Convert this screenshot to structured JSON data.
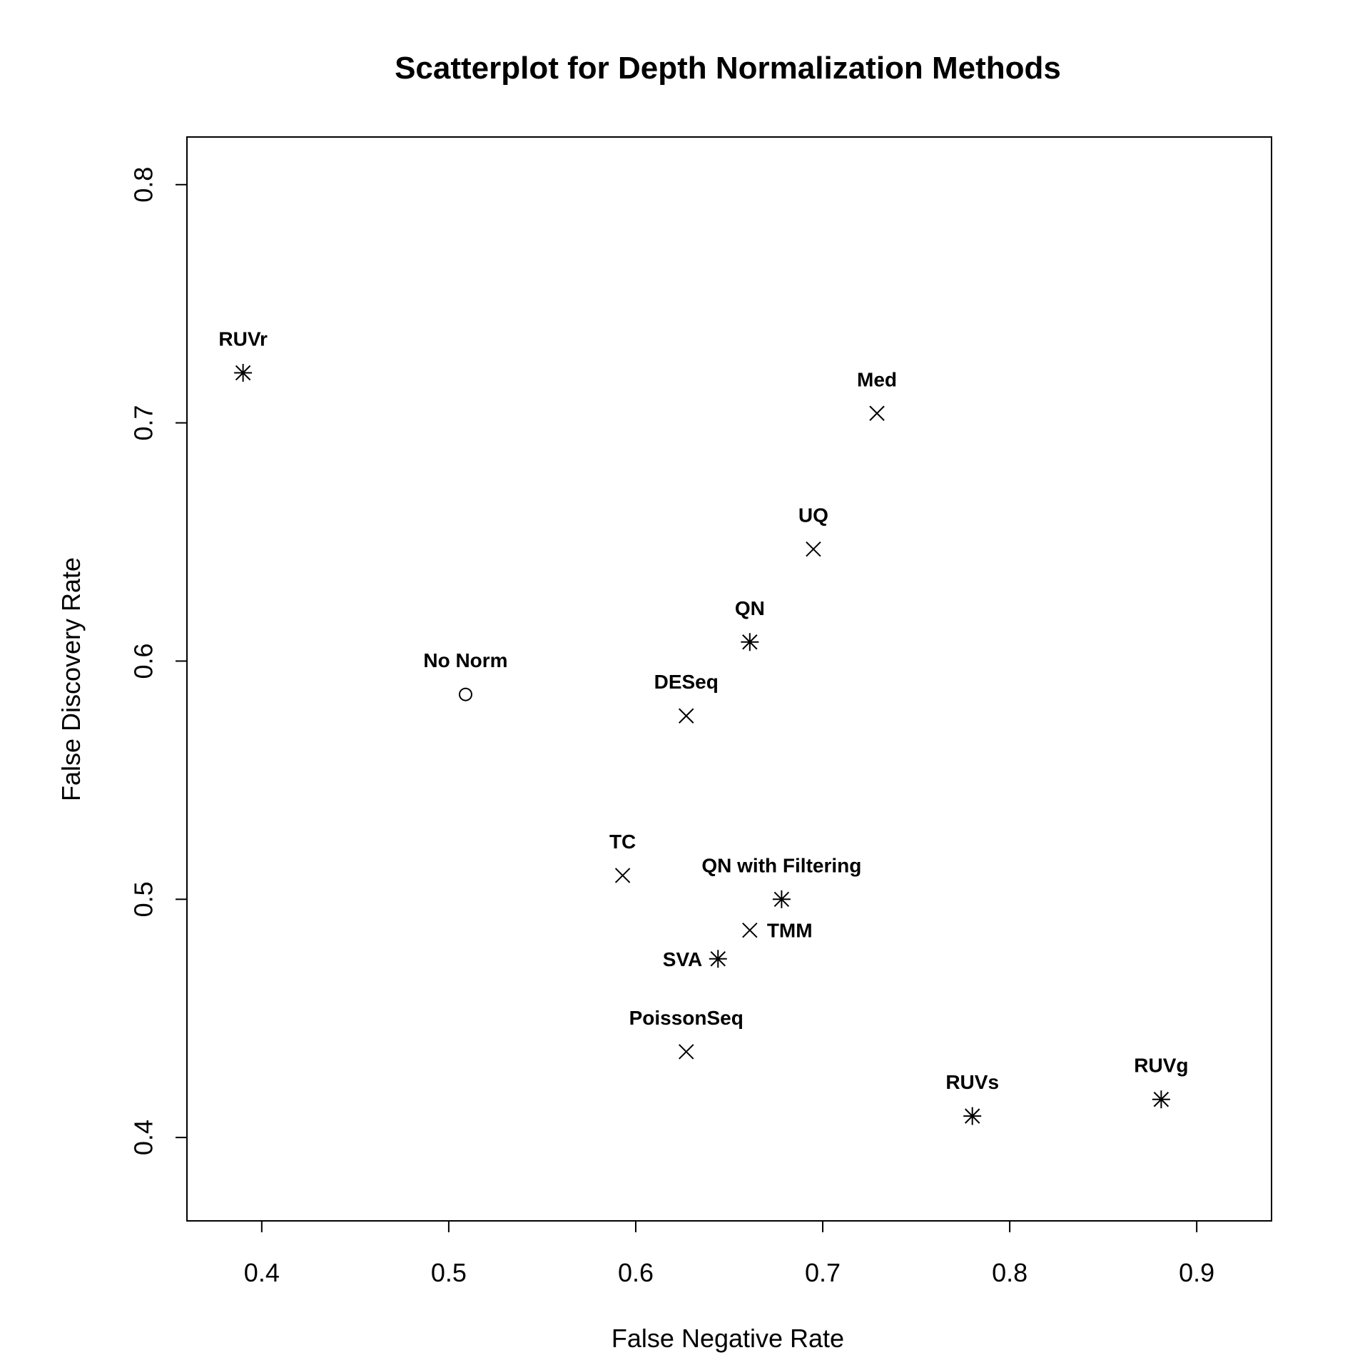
{
  "chart_data": {
    "type": "scatter",
    "title": "Scatterplot for Depth Normalization Methods",
    "xlabel": "False Negative Rate",
    "ylabel": "False Discovery Rate",
    "xlim": [
      0.36,
      0.94
    ],
    "ylim": [
      0.365,
      0.82
    ],
    "xticks": [
      0.4,
      0.5,
      0.6,
      0.7,
      0.8,
      0.9
    ],
    "xtick_labels": [
      "0.4",
      "0.5",
      "0.6",
      "0.7",
      "0.8",
      "0.9"
    ],
    "yticks": [
      0.4,
      0.5,
      0.6,
      0.7,
      0.8
    ],
    "ytick_labels": [
      "0.4",
      "0.5",
      "0.6",
      "0.7",
      "0.8"
    ],
    "grid": false,
    "legend": "none",
    "points": [
      {
        "label": "RUVr",
        "x": 0.39,
        "y": 0.721,
        "marker": "asterisk",
        "label_pos": "top"
      },
      {
        "label": "Med",
        "x": 0.729,
        "y": 0.704,
        "marker": "cross",
        "label_pos": "top"
      },
      {
        "label": "UQ",
        "x": 0.695,
        "y": 0.647,
        "marker": "cross",
        "label_pos": "top"
      },
      {
        "label": "QN",
        "x": 0.661,
        "y": 0.608,
        "marker": "asterisk",
        "label_pos": "top"
      },
      {
        "label": "No Norm",
        "x": 0.509,
        "y": 0.586,
        "marker": "circle",
        "label_pos": "top"
      },
      {
        "label": "DESeq",
        "x": 0.627,
        "y": 0.577,
        "marker": "cross",
        "label_pos": "top"
      },
      {
        "label": "TC",
        "x": 0.593,
        "y": 0.51,
        "marker": "cross",
        "label_pos": "top"
      },
      {
        "label": "QN with Filtering",
        "x": 0.678,
        "y": 0.5,
        "marker": "asterisk",
        "label_pos": "top"
      },
      {
        "label": "TMM",
        "x": 0.661,
        "y": 0.487,
        "marker": "cross",
        "label_pos": "right"
      },
      {
        "label": "SVA",
        "x": 0.644,
        "y": 0.475,
        "marker": "asterisk",
        "label_pos": "left"
      },
      {
        "label": "PoissonSeq",
        "x": 0.627,
        "y": 0.436,
        "marker": "cross",
        "label_pos": "top"
      },
      {
        "label": "RUVs",
        "x": 0.78,
        "y": 0.409,
        "marker": "asterisk",
        "label_pos": "top"
      },
      {
        "label": "RUVg",
        "x": 0.881,
        "y": 0.416,
        "marker": "asterisk",
        "label_pos": "top"
      }
    ]
  }
}
